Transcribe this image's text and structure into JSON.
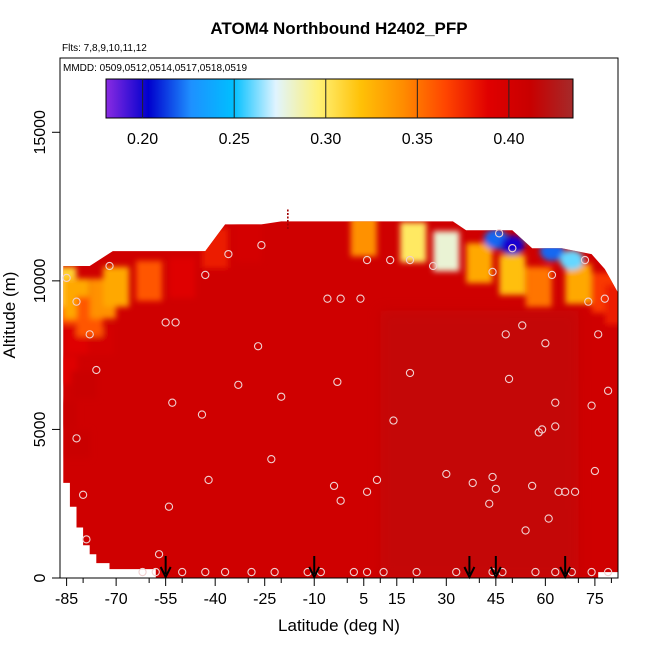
{
  "chart_data": {
    "type": "heatmap",
    "title": "ATOM4 Northbound H2402_PFP",
    "subtitle_flights": "Flts: 7,8,9,10,11,12",
    "subtitle_dates": "MMDD: 0509,0512,0514,0517,0518,0519",
    "xlabel": "Latitude (deg N)",
    "ylabel": "Altitude (m)",
    "xlim": [
      -87,
      82
    ],
    "ylim": [
      0,
      17500
    ],
    "x_ticks": [
      -85,
      -70,
      -55,
      -40,
      -25,
      -10,
      5,
      15,
      30,
      45,
      60,
      75
    ],
    "y_ticks": [
      0,
      5000,
      10000,
      15000
    ],
    "colorbar": {
      "min": 0.18,
      "max": 0.435,
      "ticks": [
        0.2,
        0.25,
        0.3,
        0.35,
        0.4
      ],
      "tick_labels": [
        "0.20",
        "0.25",
        "0.30",
        "0.35",
        "0.40"
      ],
      "colors": [
        "#8a2be2",
        "#0000cd",
        "#1e90ff",
        "#00bfff",
        "#e0f4ff",
        "#fff176",
        "#ffc107",
        "#ff8c00",
        "#ff4500",
        "#e00000",
        "#c80000",
        "#a52a2a"
      ]
    },
    "ceiling": [
      [
        -86,
        10500
      ],
      [
        -78,
        10500
      ],
      [
        -71,
        11000
      ],
      [
        -56,
        11000
      ],
      [
        -43,
        11000
      ],
      [
        -37,
        11900
      ],
      [
        -26,
        11900
      ],
      [
        -20,
        12000
      ],
      [
        5,
        12000
      ],
      [
        32,
        12000
      ],
      [
        36,
        11700
      ],
      [
        50,
        11700
      ],
      [
        56,
        11100
      ],
      [
        65,
        11100
      ],
      [
        74,
        10900
      ],
      [
        78,
        10400
      ],
      [
        82,
        9600
      ]
    ],
    "floor": [
      [
        -86,
        3200
      ],
      [
        -84,
        3200
      ],
      [
        -84,
        2400
      ],
      [
        -82,
        2400
      ],
      [
        -82,
        1700
      ],
      [
        -80,
        1700
      ],
      [
        -80,
        1100
      ],
      [
        -78,
        1100
      ],
      [
        -78,
        800
      ],
      [
        -76,
        800
      ],
      [
        -76,
        500
      ],
      [
        -74,
        500
      ],
      [
        -72,
        500
      ],
      [
        -72,
        300
      ],
      [
        -58,
        300
      ],
      [
        -58,
        0
      ],
      [
        76,
        0
      ],
      [
        76,
        200
      ],
      [
        80,
        200
      ],
      [
        82,
        200
      ]
    ],
    "high_band": [
      [
        -86,
        10000,
        0.31
      ],
      [
        -82,
        9600,
        0.33
      ],
      [
        -78,
        9000,
        0.36
      ],
      [
        -74,
        9600,
        0.34
      ],
      [
        -70,
        10000,
        0.33
      ],
      [
        -60,
        10200,
        0.36
      ],
      [
        -50,
        10300,
        0.39
      ],
      [
        -40,
        11300,
        0.38
      ],
      [
        -30,
        11500,
        0.4
      ],
      [
        5,
        11700,
        0.34
      ],
      [
        20,
        11500,
        0.3
      ],
      [
        30,
        11200,
        0.28
      ],
      [
        40,
        10800,
        0.33
      ],
      [
        50,
        10400,
        0.32
      ],
      [
        58,
        10000,
        0.35
      ],
      [
        70,
        10100,
        0.33
      ],
      [
        78,
        9800,
        0.37
      ],
      [
        82,
        9400,
        0.38
      ]
    ],
    "column_profiles": [
      [
        -86,
        9000,
        0.36
      ],
      [
        -86,
        7000,
        0.39
      ],
      [
        -86,
        5500,
        0.41
      ],
      [
        -82,
        8000,
        0.39
      ],
      [
        -80,
        6500,
        0.41
      ],
      [
        -82,
        4500,
        0.41
      ],
      [
        -75,
        8000,
        0.4
      ]
    ],
    "blue_blobs": [
      [
        45,
        11400,
        0.22
      ],
      [
        50,
        11200,
        0.2
      ],
      [
        57,
        11600,
        0.23
      ],
      [
        62,
        11000,
        0.22
      ],
      [
        68,
        10700,
        0.26
      ]
    ],
    "profile_points": [
      [
        -85,
        10100
      ],
      [
        -82,
        9300
      ],
      [
        -78,
        8200
      ],
      [
        -76,
        7000
      ],
      [
        -82,
        4700
      ],
      [
        -80,
        2800
      ],
      [
        -79,
        1300
      ],
      [
        -72,
        10500
      ],
      [
        -55,
        8600
      ],
      [
        -52,
        8600
      ],
      [
        -53,
        5900
      ],
      [
        -54,
        2400
      ],
      [
        -57,
        800
      ],
      [
        -43,
        10200
      ],
      [
        -42,
        3300
      ],
      [
        -44,
        5500
      ],
      [
        -36,
        10900
      ],
      [
        -33,
        6500
      ],
      [
        -26,
        11200
      ],
      [
        -27,
        7800
      ],
      [
        -23,
        4000
      ],
      [
        -20,
        6100
      ],
      [
        -6,
        9400
      ],
      [
        -2,
        9400
      ],
      [
        -3,
        6600
      ],
      [
        -4,
        3100
      ],
      [
        -2,
        2600
      ],
      [
        4,
        9400
      ],
      [
        6,
        10700
      ],
      [
        6,
        2900
      ],
      [
        9,
        3300
      ],
      [
        13,
        10700
      ],
      [
        14,
        5300
      ],
      [
        19,
        10700
      ],
      [
        19,
        6900
      ],
      [
        26,
        10500
      ],
      [
        30,
        3500
      ],
      [
        38,
        3200
      ],
      [
        43,
        2500
      ],
      [
        44,
        10300
      ],
      [
        46,
        11600
      ],
      [
        48,
        8200
      ],
      [
        49,
        6700
      ],
      [
        50,
        11100
      ],
      [
        53,
        8500
      ],
      [
        54,
        1600
      ],
      [
        58,
        4900
      ],
      [
        59,
        5000
      ],
      [
        60,
        7900
      ],
      [
        61,
        2000
      ],
      [
        62,
        10200
      ],
      [
        63,
        5900
      ],
      [
        63,
        5100
      ],
      [
        64,
        2900
      ],
      [
        66,
        2900
      ],
      [
        69,
        2900
      ],
      [
        72,
        10700
      ],
      [
        73,
        9300
      ],
      [
        74,
        5800
      ],
      [
        75,
        3600
      ],
      [
        76,
        8200
      ],
      [
        78,
        9400
      ],
      [
        79,
        6300
      ],
      [
        44,
        3400
      ],
      [
        45,
        3000
      ],
      [
        56,
        3100
      ],
      [
        -62,
        200
      ],
      [
        -58,
        200
      ],
      [
        -50,
        200
      ],
      [
        -43,
        200
      ],
      [
        -37,
        200
      ],
      [
        -29,
        200
      ],
      [
        -22,
        200
      ],
      [
        -12,
        200
      ],
      [
        -8,
        200
      ],
      [
        2,
        200
      ],
      [
        6,
        200
      ],
      [
        11,
        200
      ],
      [
        21,
        200
      ],
      [
        33,
        200
      ],
      [
        44,
        200
      ],
      [
        47,
        200
      ],
      [
        57,
        200
      ],
      [
        63,
        200
      ],
      [
        68,
        200
      ],
      [
        74,
        200
      ],
      [
        79,
        200
      ]
    ],
    "profile_arrow_latitudes": [
      -55,
      -10,
      37,
      45,
      66
    ],
    "ceiling_marker_latitude": -18
  }
}
